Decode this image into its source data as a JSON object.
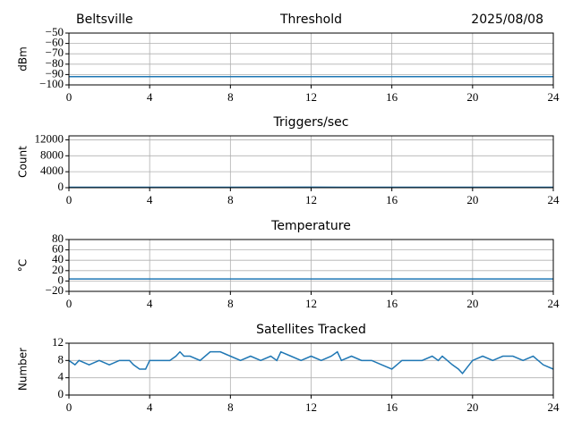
{
  "header": {
    "location": "Beltsville",
    "date": "2025/08/08"
  },
  "chart_data": [
    {
      "type": "line",
      "title": "Threshold",
      "ylabel": "dBm",
      "x": [
        0,
        24
      ],
      "series": [
        {
          "color": "#1f77b4",
          "values": [
            -92,
            -92
          ]
        }
      ],
      "xlim": [
        0,
        24
      ],
      "xticks": [
        0,
        4,
        8,
        12,
        16,
        20,
        24
      ],
      "ylim": [
        -100,
        -50
      ],
      "yticks": [
        {
          "value": -100,
          "label": "−100"
        },
        {
          "value": -90,
          "label": "−90"
        },
        {
          "value": -80,
          "label": "−80"
        },
        {
          "value": -70,
          "label": "−70"
        },
        {
          "value": -60,
          "label": "−60"
        },
        {
          "value": -50,
          "label": "−50"
        }
      ],
      "grid": true
    },
    {
      "type": "line",
      "title": "Triggers/sec",
      "ylabel": "Count",
      "x": [
        0,
        4,
        8,
        12,
        16,
        20,
        24
      ],
      "series": [
        {
          "color": "#1f77b4",
          "values": [
            100,
            110,
            100,
            130,
            110,
            100,
            110
          ]
        }
      ],
      "xlim": [
        0,
        24
      ],
      "xticks": [
        0,
        4,
        8,
        12,
        16,
        20,
        24
      ],
      "ylim": [
        0,
        13000
      ],
      "yticks": [
        0,
        4000,
        8000,
        12000
      ],
      "grid": true
    },
    {
      "type": "line",
      "title": "Temperature",
      "ylabel": "°C",
      "x": [
        0,
        24
      ],
      "series": [
        {
          "color": "#1f77b4",
          "values": [
            4,
            4
          ]
        }
      ],
      "xlim": [
        0,
        24
      ],
      "xticks": [
        0,
        4,
        8,
        12,
        16,
        20,
        24
      ],
      "ylim": [
        -20,
        80
      ],
      "yticks": [
        {
          "value": -20,
          "label": "−20"
        },
        0,
        20,
        40,
        60,
        80
      ],
      "grid": true
    },
    {
      "type": "line",
      "title": "Satellites Tracked",
      "ylabel": "Number",
      "x": [
        0,
        0.3,
        0.5,
        1,
        1.5,
        2,
        2.5,
        3,
        3.2,
        3.5,
        3.8,
        4,
        5,
        5.3,
        5.5,
        5.7,
        6,
        6.5,
        7,
        7.5,
        8,
        8.5,
        9,
        9.5,
        10,
        10.3,
        10.5,
        11,
        11.5,
        12,
        12.5,
        13,
        13.3,
        13.5,
        14,
        14.5,
        15,
        15.5,
        16,
        16.5,
        17,
        17.5,
        18,
        18.3,
        18.5,
        19,
        19.3,
        19.5,
        20,
        20.5,
        21,
        21.5,
        22,
        22.5,
        23,
        23.5,
        24
      ],
      "series": [
        {
          "color": "#1f77b4",
          "values": [
            8,
            7,
            8,
            7,
            8,
            7,
            8,
            8,
            7,
            6,
            6,
            8,
            8,
            9,
            10,
            9,
            9,
            8,
            10,
            10,
            9,
            8,
            9,
            8,
            9,
            8,
            10,
            9,
            8,
            9,
            8,
            9,
            10,
            8,
            9,
            8,
            8,
            7,
            6,
            8,
            8,
            8,
            9,
            8,
            9,
            7,
            6,
            5,
            8,
            9,
            8,
            9,
            9,
            8,
            9,
            7,
            6
          ]
        }
      ],
      "xlim": [
        0,
        24
      ],
      "xticks": [
        0,
        4,
        8,
        12,
        16,
        20,
        24
      ],
      "ylim": [
        0,
        12
      ],
      "yticks": [
        0,
        4,
        8,
        12
      ],
      "grid": true
    }
  ]
}
